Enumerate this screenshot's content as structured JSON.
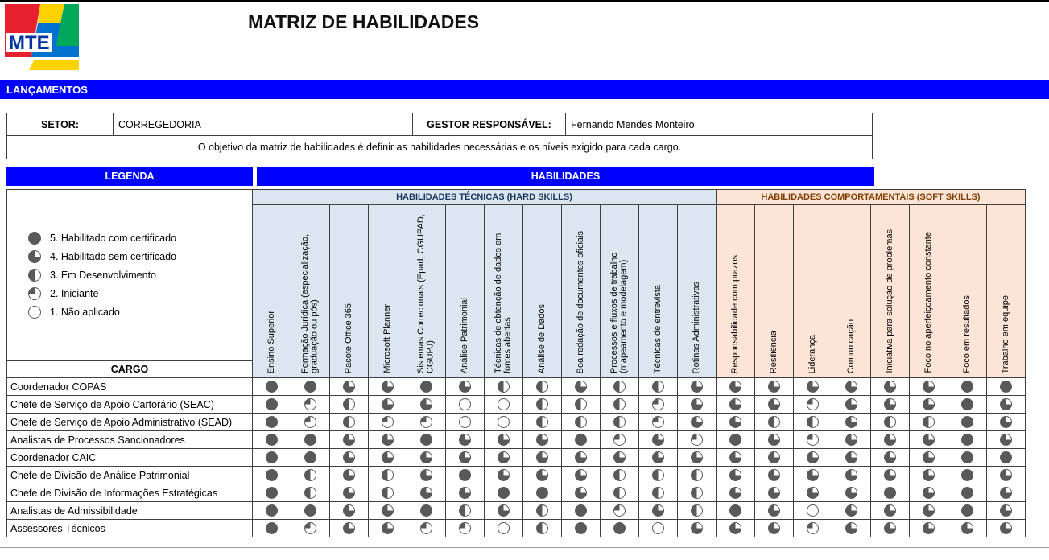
{
  "header": {
    "title": "MATRIZ DE HABILIDADES",
    "logo_text": "MTE",
    "banner": "LANÇAMENTOS"
  },
  "form": {
    "setor_label": "SETOR:",
    "setor_value": "CORREGEDORIA",
    "gestor_label": "GESTOR RESPONSÁVEL:",
    "gestor_value": "Fernando Mendes Monteiro",
    "objective": "O objetivo da matriz de habilidades é definir as habilidades necessárias e os níveis exigido para cada cargo."
  },
  "legend": {
    "title": "LEGENDA",
    "cargo_header": "CARGO",
    "items": [
      {
        "level": 5,
        "label": "5. Habilitado com certificado"
      },
      {
        "level": 4,
        "label": "4. Habilitado sem certificado"
      },
      {
        "level": 3,
        "label": "3. Em Desenvolvimento"
      },
      {
        "level": 2,
        "label": "2. Iniciante"
      },
      {
        "level": 1,
        "label": "1. Não aplicado"
      }
    ]
  },
  "matrix": {
    "title": "HABILIDADES",
    "groups": [
      {
        "label": "HABILIDADES TÉCNICAS (HARD SKILLS)",
        "color": "#dce6f1",
        "span": 12
      },
      {
        "label": "HABILIDADES COMPORTAMENTAIS (SOFT SKILLS)",
        "color": "#fce4d6",
        "span": 8
      }
    ],
    "skills": [
      {
        "name": "Ensino Superior",
        "group": 0
      },
      {
        "name": "Formação Jurídica (especialização, graduação ou pós)",
        "group": 0
      },
      {
        "name": "Pacote Office 365",
        "group": 0
      },
      {
        "name": "Microsoft Planner",
        "group": 0
      },
      {
        "name": "Sistemas Correcionais (Epad, CGUPAD, CGUPJ)",
        "group": 0
      },
      {
        "name": "Análise Patrimonial",
        "group": 0
      },
      {
        "name": "Técnicas de obtenção de dados em fontes abertas",
        "group": 0
      },
      {
        "name": "Análise de Dados",
        "group": 0
      },
      {
        "name": "Boa redação de documentos oficiais",
        "group": 0
      },
      {
        "name": "Processos e fluxos de trabalho (mapeamento e modelagem)",
        "group": 0
      },
      {
        "name": "Técnicas de entrevista",
        "group": 0
      },
      {
        "name": "Rotinas Administrativas",
        "group": 0
      },
      {
        "name": "Responsabilidade com prazos",
        "group": 1
      },
      {
        "name": "Resiliência",
        "group": 1
      },
      {
        "name": "Liderança",
        "group": 1
      },
      {
        "name": "Comunicação",
        "group": 1
      },
      {
        "name": "Iniciativa para solução de problemas",
        "group": 1
      },
      {
        "name": "Foco no aperfeiçoamento constante",
        "group": 1
      },
      {
        "name": "Foco em resultados",
        "group": 1
      },
      {
        "name": "Trabalho em equipe",
        "group": 1
      }
    ],
    "rows": [
      {
        "cargo": "Coordenador COPAS",
        "levels": [
          5,
          5,
          4,
          4,
          5,
          4,
          3,
          3,
          4,
          3,
          3,
          4,
          4,
          4,
          4,
          4,
          4,
          4,
          5,
          5
        ]
      },
      {
        "cargo": "Chefe de Serviço de Apoio Cartorário (SEAC)",
        "levels": [
          5,
          2,
          3,
          4,
          4,
          1,
          1,
          3,
          3,
          3,
          2,
          4,
          4,
          4,
          2,
          4,
          4,
          4,
          5,
          4
        ]
      },
      {
        "cargo": "Chefe de Serviço de Apoio Administrativo (SEAD)",
        "levels": [
          5,
          2,
          3,
          2,
          2,
          1,
          1,
          3,
          3,
          3,
          2,
          4,
          4,
          3,
          3,
          4,
          3,
          3,
          5,
          4
        ]
      },
      {
        "cargo": "Analistas de Processos Sancionadores",
        "levels": [
          5,
          5,
          4,
          4,
          5,
          4,
          4,
          4,
          5,
          2,
          4,
          2,
          5,
          4,
          2,
          4,
          4,
          4,
          5,
          4
        ]
      },
      {
        "cargo": "Coordenador CAIC",
        "levels": [
          5,
          5,
          4,
          4,
          4,
          4,
          4,
          4,
          4,
          4,
          4,
          4,
          4,
          4,
          4,
          4,
          4,
          4,
          5,
          5
        ]
      },
      {
        "cargo": "Chefe de Divisão de Análise Patrimonial",
        "levels": [
          5,
          3,
          4,
          3,
          4,
          5,
          4,
          4,
          4,
          3,
          3,
          3,
          4,
          4,
          4,
          4,
          4,
          4,
          5,
          4
        ]
      },
      {
        "cargo": "Chefe de Divisão de Informações Estratégicas",
        "levels": [
          5,
          3,
          4,
          3,
          4,
          4,
          5,
          5,
          4,
          3,
          3,
          3,
          4,
          4,
          4,
          4,
          5,
          4,
          5,
          4
        ]
      },
      {
        "cargo": "Analistas de Admissibilidade",
        "levels": [
          5,
          5,
          4,
          4,
          5,
          3,
          4,
          3,
          5,
          2,
          4,
          3,
          5,
          4,
          1,
          4,
          4,
          4,
          5,
          4
        ]
      },
      {
        "cargo": "Assessores Técnicos",
        "levels": [
          5,
          2,
          4,
          4,
          2,
          2,
          1,
          3,
          5,
          5,
          1,
          4,
          4,
          4,
          2,
          4,
          4,
          4,
          4,
          4
        ]
      }
    ]
  },
  "colors": {
    "banner_blue": "#0000ff",
    "hard_group_bg": "#dce6f1",
    "soft_group_bg": "#fce4d6",
    "hard_group_text": "#17375e",
    "soft_group_text": "#7f3f00",
    "pie_fill": "#595959"
  }
}
